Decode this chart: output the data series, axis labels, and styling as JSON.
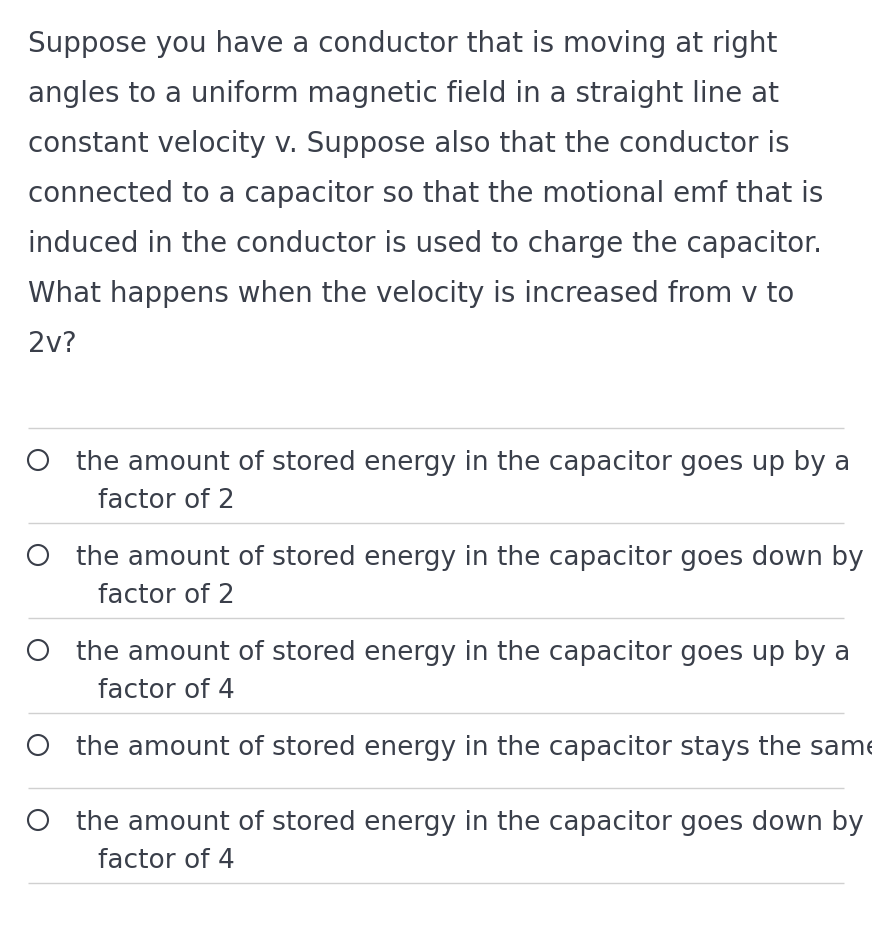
{
  "background_color": "#ffffff",
  "question_lines": [
    "Suppose you have a conductor that is moving at right",
    "angles to a uniform magnetic field in a straight line at",
    "constant velocity v. Suppose also that the conductor is",
    "connected to a capacitor so that the motional emf that is",
    "induced in the conductor is used to charge the capacitor.",
    "What happens when the velocity is increased from v to",
    "2v?"
  ],
  "options": [
    [
      "the amount of stored energy in the capacitor goes up by a",
      "    factor of 2"
    ],
    [
      "the amount of stored energy in the capacitor goes down by a",
      "    factor of 2"
    ],
    [
      "the amount of stored energy in the capacitor goes up by a",
      "    factor of 4"
    ],
    [
      "the amount of stored energy in the capacitor stays the same"
    ],
    [
      "the amount of stored energy in the capacitor goes down by a",
      "    factor of 4"
    ]
  ],
  "text_color": "#3a3f4a",
  "divider_color": "#d0d0d0",
  "circle_edge_color": "#3a3f4a",
  "question_fontsize": 20,
  "option_fontsize": 19,
  "fig_width": 8.72,
  "fig_height": 9.48,
  "dpi": 100
}
